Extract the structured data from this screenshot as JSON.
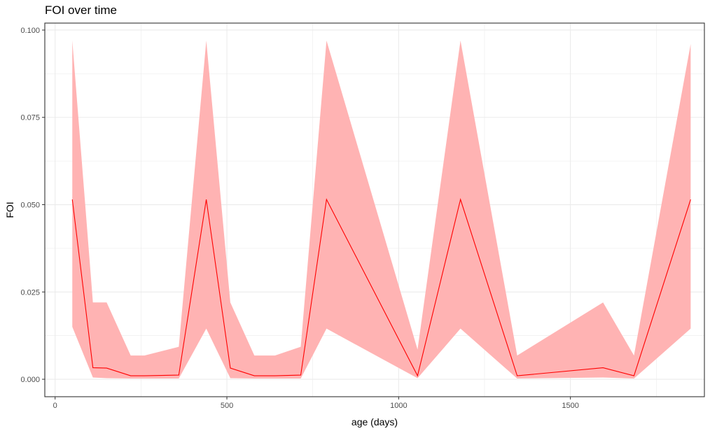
{
  "chart_data": {
    "type": "area",
    "title": "FOI over time",
    "xlabel": "age (days)",
    "ylabel": "FOI",
    "xlim": [
      -30,
      1890
    ],
    "ylim": [
      -0.005,
      0.102
    ],
    "x_ticks": [
      0,
      500,
      1000,
      1500
    ],
    "x_tick_labels": [
      "0",
      "500",
      "1000",
      "1500"
    ],
    "y_ticks": [
      0.0,
      0.025,
      0.05,
      0.075,
      0.1
    ],
    "y_tick_labels": [
      "0.000",
      "0.025",
      "0.050",
      "0.075",
      "0.100"
    ],
    "grid": true,
    "legend": "none",
    "colors": {
      "line": "#ff0000",
      "ribbon": "#ffb3b3",
      "grid": "#ebebeb",
      "panel_border": "#333333"
    },
    "x": [
      50,
      110,
      150,
      220,
      260,
      360,
      440,
      510,
      580,
      640,
      715,
      790,
      1055,
      1180,
      1345,
      1595,
      1685,
      1850
    ],
    "series": [
      {
        "values": [
          0.0515,
          0.0033,
          0.0032,
          0.001,
          0.001,
          0.0012,
          0.0515,
          0.0032,
          0.001,
          0.001,
          0.0012,
          0.0515,
          0.001,
          0.0515,
          0.001,
          0.0033,
          0.001,
          0.0515
        ]
      }
    ],
    "ribbon_lower": [
      0.015,
      0.0005,
      0.0003,
      0.0002,
      0.0002,
      0.0002,
      0.0145,
      0.0003,
      0.0002,
      0.0002,
      0.0002,
      0.0145,
      0.0003,
      0.0145,
      0.0002,
      0.0005,
      0.0002,
      0.0145
    ],
    "ribbon_upper": [
      0.097,
      0.022,
      0.022,
      0.0068,
      0.0068,
      0.0093,
      0.097,
      0.022,
      0.0068,
      0.0068,
      0.0093,
      0.097,
      0.0085,
      0.097,
      0.0068,
      0.022,
      0.0068,
      0.096
    ]
  }
}
